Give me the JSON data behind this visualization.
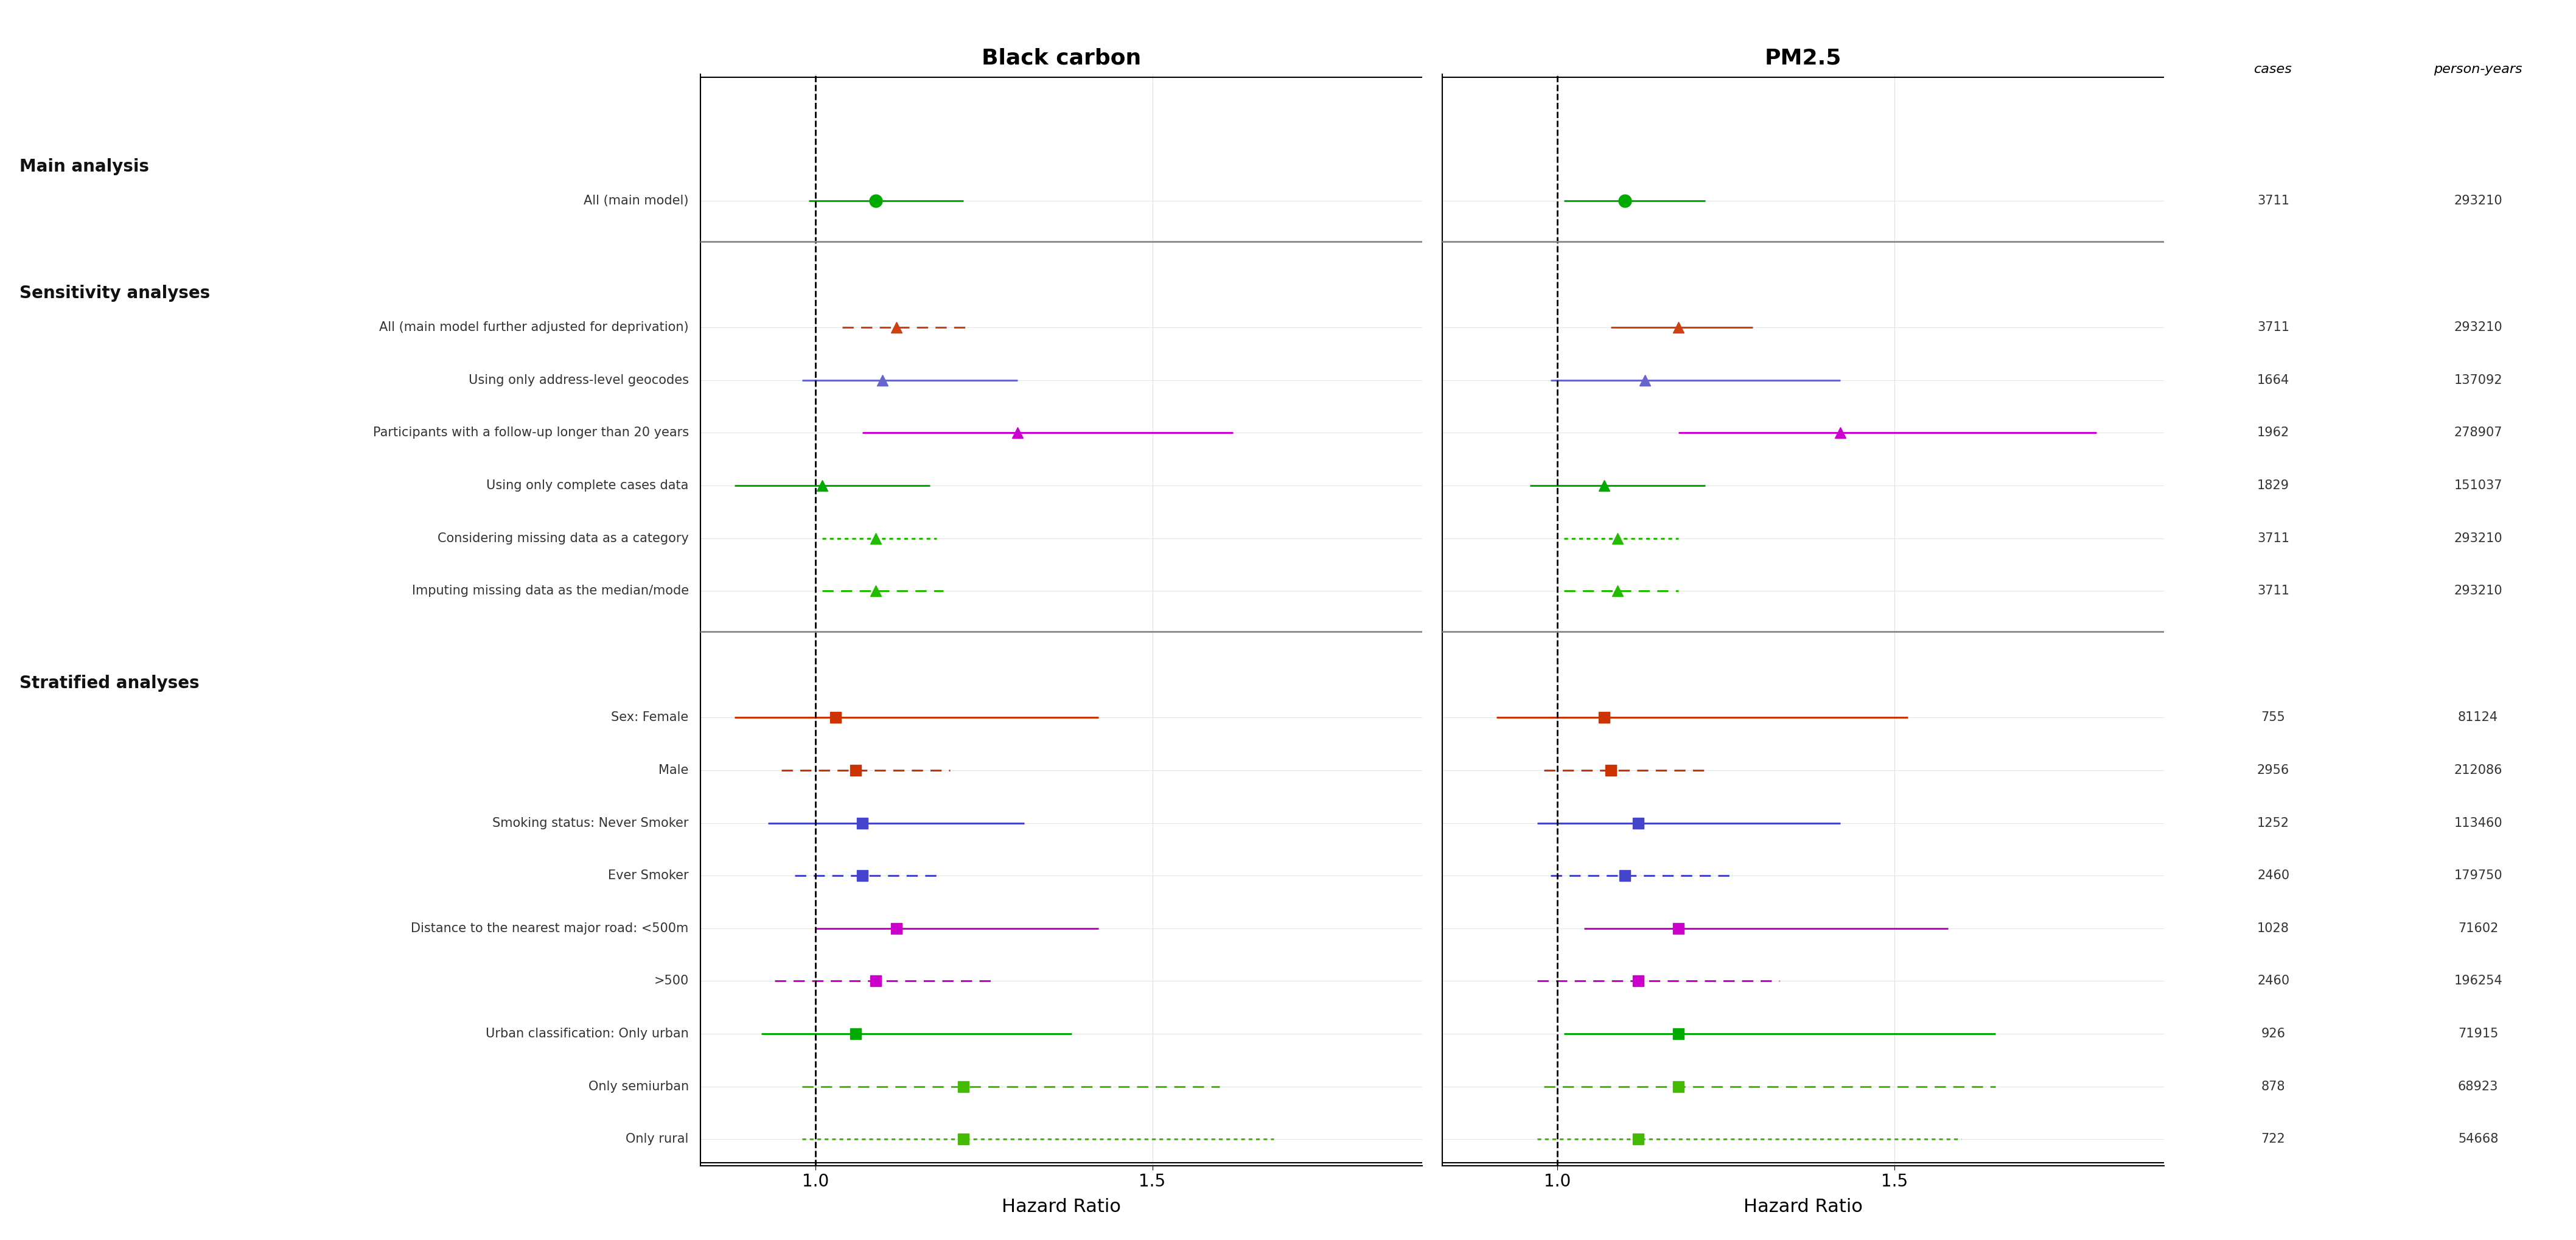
{
  "title_bc": "Black carbon",
  "title_pm": "PM2.5",
  "xlabel": "Hazard Ratio",
  "ref_line": 1.0,
  "xlim_bc": [
    0.83,
    1.9
  ],
  "xlim_pm": [
    0.83,
    1.9
  ],
  "xticks": [
    1.0,
    1.5
  ],
  "row_labels": [
    "All (main model)",
    "All (main model further adjusted for deprivation)",
    "Using only address-level geocodes",
    "Participants with a follow-up longer than 20 years",
    "Using only complete cases data",
    "Considering missing data as a category",
    "Imputing missing data as the median/mode",
    "Sex: Female",
    "Male",
    "Smoking status: Never Smoker",
    "Ever Smoker",
    "Distance to the nearest major road: <500m",
    ">500",
    "Urban classification: Only urban",
    "Only semiurban",
    "Only rural"
  ],
  "section_breaks": {
    "0": "Main analysis",
    "1": "Sensitivity analyses",
    "7": "Stratified analyses"
  },
  "cases": [
    3711,
    3711,
    1664,
    1962,
    1829,
    3711,
    3711,
    755,
    2956,
    1252,
    2460,
    1028,
    2460,
    926,
    878,
    722
  ],
  "person_years": [
    293210,
    293210,
    137092,
    278907,
    151037,
    293210,
    293210,
    81124,
    212086,
    113460,
    179750,
    71602,
    196254,
    71915,
    68923,
    54668
  ],
  "bc_data": [
    {
      "hr": 1.09,
      "lo": 0.99,
      "hi": 1.22,
      "marker": "o",
      "color": "#00AA00",
      "linestyle": "solid"
    },
    {
      "hr": 1.12,
      "lo": 1.04,
      "hi": 1.23,
      "marker": "^",
      "color": "#D04010",
      "linestyle": "dashed"
    },
    {
      "hr": 1.1,
      "lo": 0.98,
      "hi": 1.3,
      "marker": "^",
      "color": "#6666CC",
      "linestyle": "solid"
    },
    {
      "hr": 1.3,
      "lo": 1.07,
      "hi": 1.62,
      "marker": "^",
      "color": "#CC00CC",
      "linestyle": "solid"
    },
    {
      "hr": 1.01,
      "lo": 0.88,
      "hi": 1.17,
      "marker": "^",
      "color": "#00AA00",
      "linestyle": "solid"
    },
    {
      "hr": 1.09,
      "lo": 1.01,
      "hi": 1.18,
      "marker": "^",
      "color": "#22BB00",
      "linestyle": "dotted"
    },
    {
      "hr": 1.09,
      "lo": 1.01,
      "hi": 1.19,
      "marker": "^",
      "color": "#22BB00",
      "linestyle": "dashed"
    },
    {
      "hr": 1.03,
      "lo": 0.88,
      "hi": 1.42,
      "marker": "s",
      "color": "#CC3300",
      "linestyle": "solid"
    },
    {
      "hr": 1.06,
      "lo": 0.95,
      "hi": 1.2,
      "marker": "s",
      "color": "#CC3300",
      "linestyle": "dashed"
    },
    {
      "hr": 1.07,
      "lo": 0.93,
      "hi": 1.31,
      "marker": "s",
      "color": "#4444CC",
      "linestyle": "solid"
    },
    {
      "hr": 1.07,
      "lo": 0.97,
      "hi": 1.19,
      "marker": "s",
      "color": "#4444CC",
      "linestyle": "dashed"
    },
    {
      "hr": 1.12,
      "lo": 1.0,
      "hi": 1.42,
      "marker": "s",
      "color": "#CC00CC",
      "linestyle": "solid"
    },
    {
      "hr": 1.09,
      "lo": 0.94,
      "hi": 1.26,
      "marker": "s",
      "color": "#CC00CC",
      "linestyle": "dashed"
    },
    {
      "hr": 1.06,
      "lo": 0.92,
      "hi": 1.38,
      "marker": "s",
      "color": "#00AA00",
      "linestyle": "solid"
    },
    {
      "hr": 1.22,
      "lo": 0.98,
      "hi": 1.6,
      "marker": "s",
      "color": "#44BB00",
      "linestyle": "dashed"
    },
    {
      "hr": 1.22,
      "lo": 0.98,
      "hi": 1.68,
      "marker": "s",
      "color": "#44BB00",
      "linestyle": "dotted"
    }
  ],
  "pm_data": [
    {
      "hr": 1.1,
      "lo": 1.01,
      "hi": 1.22,
      "marker": "o",
      "color": "#00AA00",
      "linestyle": "solid"
    },
    {
      "hr": 1.18,
      "lo": 1.08,
      "hi": 1.29,
      "marker": "^",
      "color": "#D04010",
      "linestyle": "solid"
    },
    {
      "hr": 1.13,
      "lo": 0.99,
      "hi": 1.42,
      "marker": "^",
      "color": "#6666CC",
      "linestyle": "solid"
    },
    {
      "hr": 1.42,
      "lo": 1.18,
      "hi": 1.8,
      "marker": "^",
      "color": "#CC00CC",
      "linestyle": "solid"
    },
    {
      "hr": 1.07,
      "lo": 0.96,
      "hi": 1.22,
      "marker": "^",
      "color": "#00AA00",
      "linestyle": "solid"
    },
    {
      "hr": 1.09,
      "lo": 1.01,
      "hi": 1.18,
      "marker": "^",
      "color": "#22BB00",
      "linestyle": "dotted"
    },
    {
      "hr": 1.09,
      "lo": 1.01,
      "hi": 1.18,
      "marker": "^",
      "color": "#22BB00",
      "linestyle": "dashed"
    },
    {
      "hr": 1.07,
      "lo": 0.91,
      "hi": 1.52,
      "marker": "s",
      "color": "#CC3300",
      "linestyle": "solid"
    },
    {
      "hr": 1.08,
      "lo": 0.98,
      "hi": 1.22,
      "marker": "s",
      "color": "#CC3300",
      "linestyle": "dashed"
    },
    {
      "hr": 1.12,
      "lo": 0.97,
      "hi": 1.42,
      "marker": "s",
      "color": "#4444CC",
      "linestyle": "solid"
    },
    {
      "hr": 1.1,
      "lo": 0.99,
      "hi": 1.26,
      "marker": "s",
      "color": "#4444CC",
      "linestyle": "dashed"
    },
    {
      "hr": 1.18,
      "lo": 1.04,
      "hi": 1.58,
      "marker": "s",
      "color": "#CC00CC",
      "linestyle": "solid"
    },
    {
      "hr": 1.12,
      "lo": 0.97,
      "hi": 1.33,
      "marker": "s",
      "color": "#CC00CC",
      "linestyle": "dashed"
    },
    {
      "hr": 1.18,
      "lo": 1.01,
      "hi": 1.65,
      "marker": "s",
      "color": "#00AA00",
      "linestyle": "solid"
    },
    {
      "hr": 1.18,
      "lo": 0.98,
      "hi": 1.65,
      "marker": "s",
      "color": "#44BB00",
      "linestyle": "dashed"
    },
    {
      "hr": 1.12,
      "lo": 0.97,
      "hi": 1.6,
      "marker": "s",
      "color": "#44BB00",
      "linestyle": "dotted"
    }
  ],
  "bg_color": "#FFFFFF",
  "grid_color": "#E0E0E0",
  "sep_color": "#888888"
}
